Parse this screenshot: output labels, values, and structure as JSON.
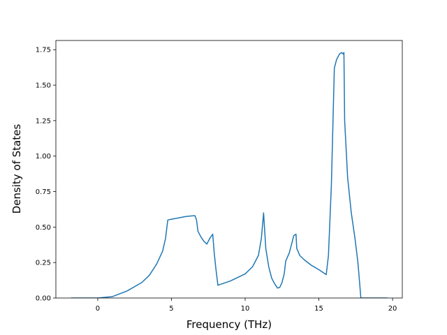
{
  "chart_data": {
    "type": "line",
    "xlabel": "Frequency (THz)",
    "ylabel": "Density of States",
    "color": "#1f77b4",
    "x": [
      -1.8,
      0,
      1,
      2,
      3,
      3.5,
      4,
      4.4,
      4.6,
      4.75,
      5,
      5.5,
      6,
      6.5,
      6.6,
      6.7,
      6.8,
      7,
      7.2,
      7.4,
      7.6,
      7.8,
      7.9,
      8.0,
      8.15,
      9,
      10,
      10.5,
      10.9,
      11.1,
      11.25,
      11.4,
      11.6,
      11.8,
      12,
      12.2,
      12.35,
      12.5,
      12.65,
      12.75,
      13,
      13.3,
      13.45,
      13.5,
      13.7,
      14,
      14.5,
      15,
      15.5,
      15.65,
      15.85,
      16.05,
      16.2,
      16.4,
      16.55,
      16.65,
      16.7,
      16.75,
      16.95,
      17.2,
      17.45,
      17.65,
      17.85,
      19.65
    ],
    "values": [
      0,
      0,
      0.01,
      0.05,
      0.11,
      0.16,
      0.24,
      0.33,
      0.42,
      0.55,
      0.555,
      0.565,
      0.575,
      0.58,
      0.58,
      0.55,
      0.47,
      0.43,
      0.4,
      0.38,
      0.42,
      0.45,
      0.32,
      0.22,
      0.09,
      0.12,
      0.17,
      0.22,
      0.3,
      0.42,
      0.6,
      0.35,
      0.22,
      0.14,
      0.1,
      0.07,
      0.075,
      0.11,
      0.17,
      0.26,
      0.32,
      0.44,
      0.45,
      0.35,
      0.3,
      0.27,
      0.23,
      0.2,
      0.165,
      0.3,
      0.8,
      1.62,
      1.68,
      1.72,
      1.73,
      1.72,
      1.73,
      1.25,
      0.85,
      0.6,
      0.42,
      0.25,
      0,
      0
    ],
    "xlim": [
      -2.84,
      20.66
    ],
    "ylim": [
      0,
      1.815
    ],
    "xticks": [
      0,
      5,
      10,
      15,
      20
    ],
    "yticks": [
      {
        "value": 0,
        "label": "0.00"
      },
      {
        "value": 0.25,
        "label": "0.25"
      },
      {
        "value": 0.5,
        "label": "0.50"
      },
      {
        "value": 0.75,
        "label": "0.75"
      },
      {
        "value": 1.0,
        "label": "1.00"
      },
      {
        "value": 1.25,
        "label": "1.25"
      },
      {
        "value": 1.5,
        "label": "1.50"
      },
      {
        "value": 1.75,
        "label": "1.75"
      }
    ],
    "grid": false
  }
}
